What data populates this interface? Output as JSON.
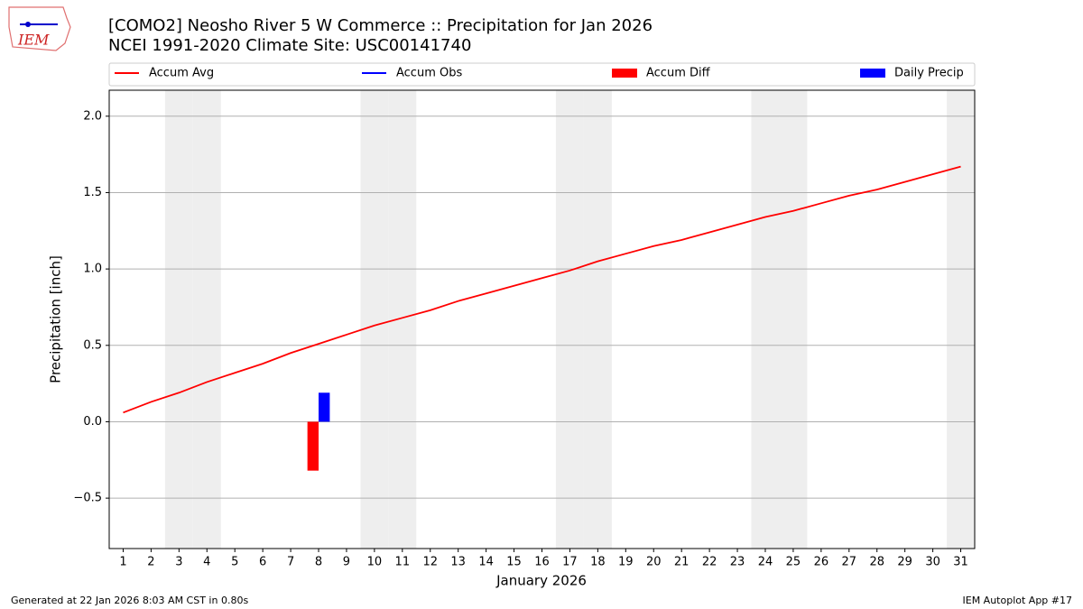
{
  "logo_text": "IEM",
  "footer": {
    "left": "Generated at 22 Jan 2026 8:03 AM CST in 0.80s",
    "right": "IEM Autoplot App #17"
  },
  "chart_data": {
    "type": "line",
    "title": "[COMO2] Neosho River 5 W Commerce :: Precipitation for Jan 2026",
    "subtitle": "NCEI 1991-2020 Climate Site: USC00141740",
    "x_label": "January 2026",
    "y_label": "Precipitation [inch]",
    "x": [
      1,
      2,
      3,
      4,
      5,
      6,
      7,
      8,
      9,
      10,
      11,
      12,
      13,
      14,
      15,
      16,
      17,
      18,
      19,
      20,
      21,
      22,
      23,
      24,
      25,
      26,
      27,
      28,
      29,
      30,
      31
    ],
    "weekend_days": [
      3,
      4,
      10,
      11,
      17,
      18,
      24,
      25,
      31
    ],
    "series": [
      {
        "name": "Accum Avg",
        "kind": "line",
        "color": "#ff0000",
        "values": [
          0.06,
          0.13,
          0.19,
          0.26,
          0.32,
          0.38,
          0.45,
          0.51,
          0.57,
          0.63,
          0.68,
          0.73,
          0.79,
          0.84,
          0.89,
          0.94,
          0.99,
          1.05,
          1.1,
          1.15,
          1.19,
          1.24,
          1.29,
          1.34,
          1.38,
          1.43,
          1.48,
          1.52,
          1.57,
          1.62,
          1.67
        ]
      },
      {
        "name": "Accum Obs",
        "kind": "line",
        "color": "#0000ff",
        "values": [
          null,
          null,
          null,
          null,
          null,
          null,
          null,
          null,
          null,
          null,
          null,
          null,
          null,
          null,
          null,
          null,
          null,
          null,
          null,
          null,
          null,
          null,
          null,
          null,
          null,
          null,
          null,
          null,
          null,
          null,
          null
        ]
      },
      {
        "name": "Accum Diff",
        "kind": "bar",
        "color": "#ff0000",
        "values": [
          null,
          null,
          null,
          null,
          null,
          null,
          null,
          -0.32,
          null,
          null,
          null,
          null,
          null,
          null,
          null,
          null,
          null,
          null,
          null,
          null,
          null,
          null,
          null,
          null,
          null,
          null,
          null,
          null,
          null,
          null,
          null
        ]
      },
      {
        "name": "Daily Precip",
        "kind": "bar",
        "color": "#0000ff",
        "values": [
          null,
          null,
          null,
          null,
          null,
          null,
          null,
          0.19,
          null,
          null,
          null,
          null,
          null,
          null,
          null,
          null,
          null,
          null,
          null,
          null,
          null,
          null,
          null,
          null,
          null,
          null,
          null,
          null,
          null,
          null,
          null
        ]
      }
    ],
    "xlim": [
      0.5,
      31.5
    ],
    "xticks": [
      1,
      2,
      3,
      4,
      5,
      6,
      7,
      8,
      9,
      10,
      11,
      12,
      13,
      14,
      15,
      16,
      17,
      18,
      19,
      20,
      21,
      22,
      23,
      24,
      25,
      26,
      27,
      28,
      29,
      30,
      31
    ],
    "ylim": [
      -0.83,
      2.17
    ],
    "yticks": [
      {
        "value": -0.5,
        "label": "−0.5"
      },
      {
        "value": 0,
        "label": "0.0"
      },
      {
        "value": 0.5,
        "label": "0.5"
      },
      {
        "value": 1,
        "label": "1.0"
      },
      {
        "value": 1.5,
        "label": "1.5"
      },
      {
        "value": 2,
        "label": "2.0"
      }
    ],
    "grid": true
  }
}
